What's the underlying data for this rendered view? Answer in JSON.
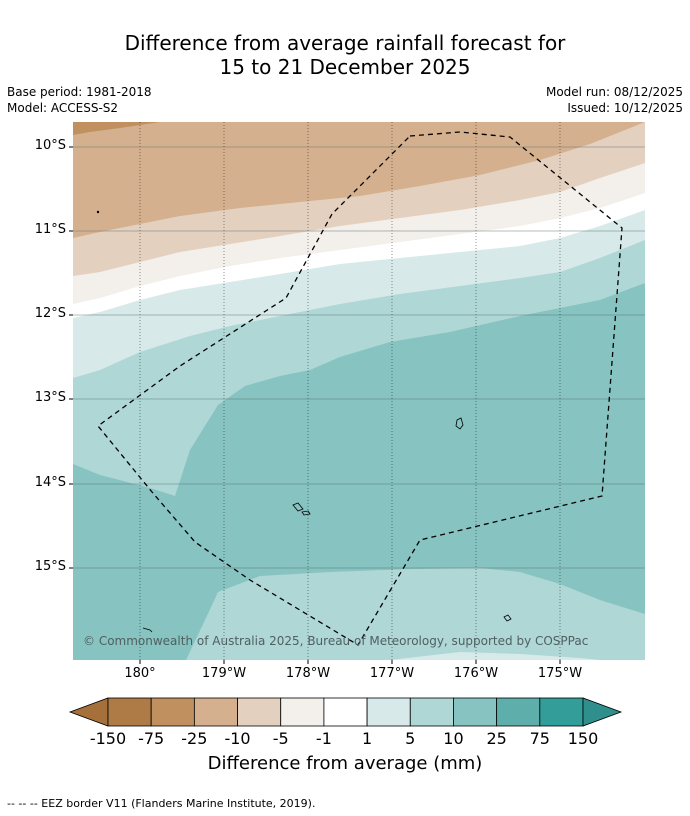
{
  "title_line1": "Difference from average rainfall forecast for",
  "title_line2": "15 to 21 December 2025",
  "meta_left": [
    "Base period: 1981-2018",
    "Model: ACCESS-S2"
  ],
  "meta_right": [
    "Model run: 08/12/2025",
    "Issued: 10/12/2025"
  ],
  "map": {
    "lat_labels": [
      "10°S",
      "11°S",
      "12°S",
      "13°S",
      "14°S",
      "15°S"
    ],
    "lon_labels": [
      "180°",
      "179°W",
      "178°W",
      "177°W",
      "176°W",
      "175°W"
    ],
    "copyright": "© Commonwealth of Australia 2025, Bureau of Meteorology, supported by COSPPac"
  },
  "colorbar": {
    "labels": [
      "-150",
      "-75",
      "-25",
      "-10",
      "-5",
      "-1",
      "1",
      "5",
      "10",
      "25",
      "75",
      "150"
    ],
    "colors": [
      "#a6703b",
      "#ae7a45",
      "#c0915f",
      "#d4b08f",
      "#e4d0bf",
      "#f3efea",
      "#ffffff",
      "#d7eae9",
      "#afd7d6",
      "#86c3c1",
      "#5eaeac",
      "#339d9a",
      "#2f8f8c"
    ],
    "title": "Difference from average (mm)"
  },
  "footer": "--  --  -- EEZ border V11 (Flanders Marine Institute, 2019)."
}
